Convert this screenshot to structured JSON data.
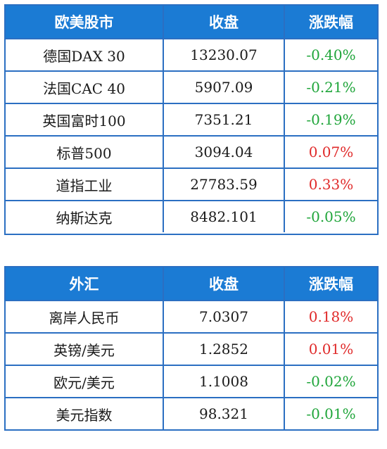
{
  "colors": {
    "header_bg": "#1b7bd4",
    "border": "#2b6fc2",
    "negative": "#1fa53a",
    "positive": "#e02a2a"
  },
  "stocks": {
    "header": [
      "欧美股市",
      "收盘",
      "涨跌幅"
    ],
    "rows": [
      {
        "name": "德国DAX 30",
        "close": "13230.07",
        "change": "-0.40%",
        "direction": "down"
      },
      {
        "name": "法国CAC 40",
        "close": "5907.09",
        "change": "-0.21%",
        "direction": "down"
      },
      {
        "name": "英国富时100",
        "close": "7351.21",
        "change": "-0.19%",
        "direction": "down"
      },
      {
        "name": "标普500",
        "close": "3094.04",
        "change": "0.07%",
        "direction": "up"
      },
      {
        "name": "道指工业",
        "close": "27783.59",
        "change": "0.33%",
        "direction": "up"
      },
      {
        "name": "纳斯达克",
        "close": "8482.101",
        "change": "-0.05%",
        "direction": "down"
      }
    ]
  },
  "fx": {
    "header": [
      "外汇",
      "收盘",
      "涨跌幅"
    ],
    "rows": [
      {
        "name": "离岸人民币",
        "close": "7.0307",
        "change": "0.18%",
        "direction": "up"
      },
      {
        "name": "英镑/美元",
        "close": "1.2852",
        "change": "0.01%",
        "direction": "up"
      },
      {
        "name": "欧元/美元",
        "close": "1.1008",
        "change": "-0.02%",
        "direction": "down"
      },
      {
        "name": "美元指数",
        "close": "98.321",
        "change": "-0.01%",
        "direction": "down"
      }
    ]
  }
}
